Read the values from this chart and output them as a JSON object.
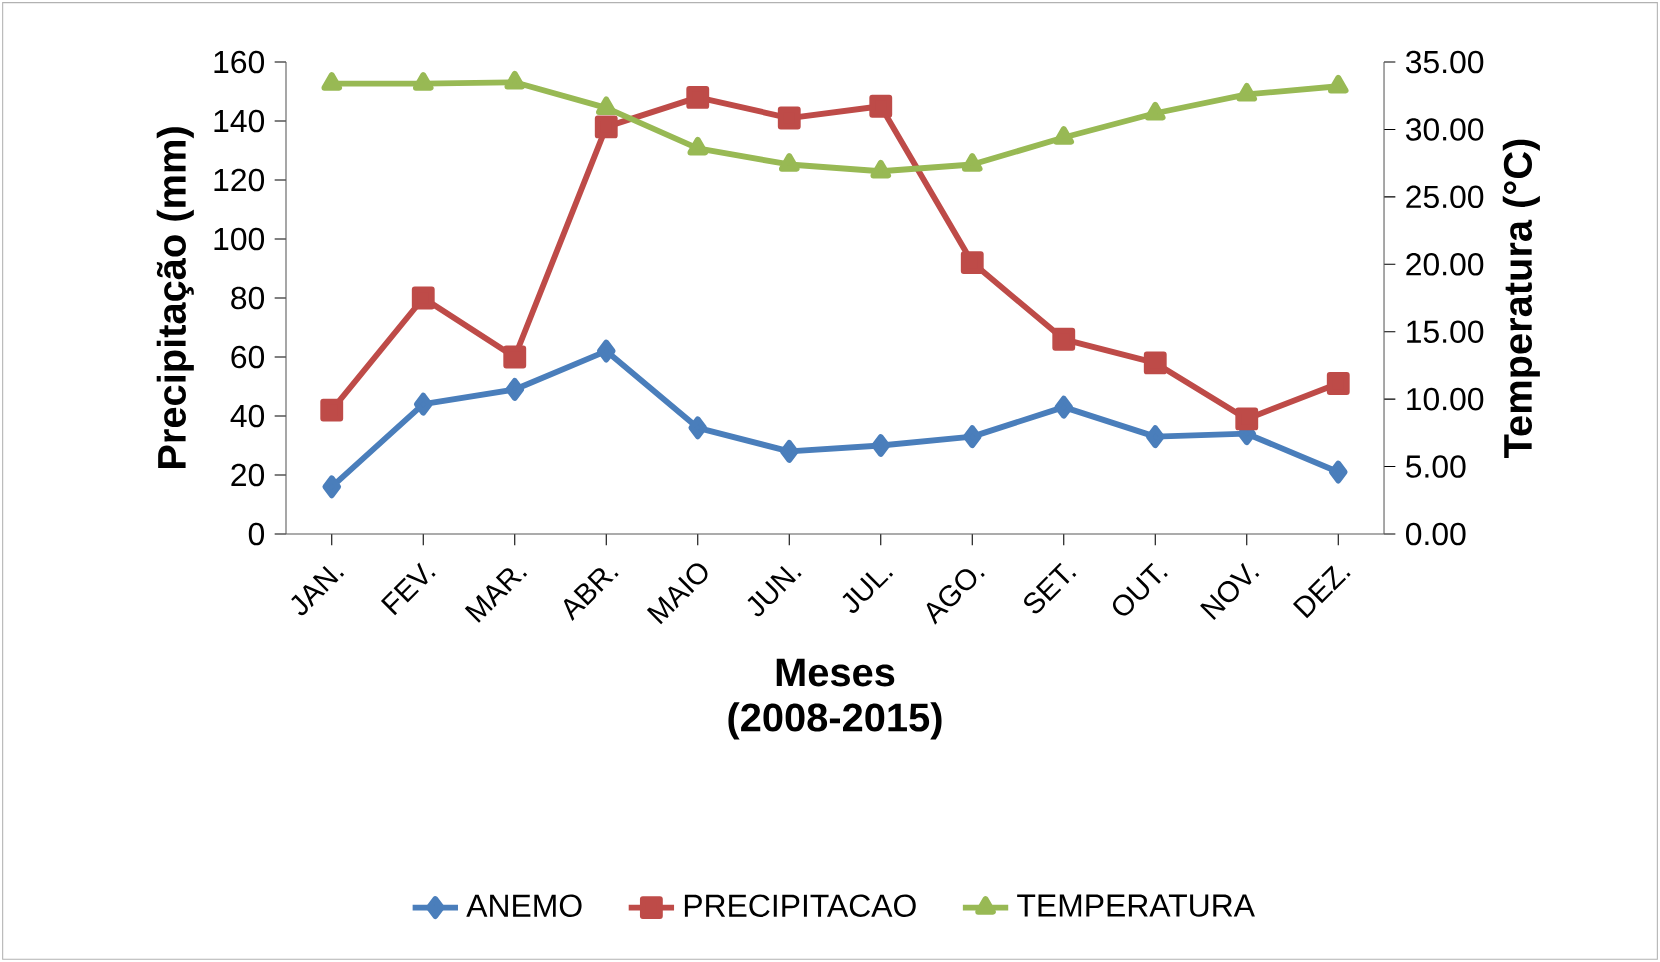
{
  "chart_data": {
    "type": "line",
    "xlabel": "Meses (2008-2015)",
    "ylabel": "Precipitação (mm)",
    "y2label": "Temperatura (°C)",
    "categories": [
      "JAN.",
      "FEV.",
      "MAR.",
      "ABR.",
      "MAIO",
      "JUN.",
      "JUL.",
      "AGO.",
      "SET.",
      "OUT.",
      "NOV.",
      "DEZ."
    ],
    "series": [
      {
        "name": "ANEMO",
        "color": "#4a7ebb",
        "marker": "diamond",
        "values": [
          16,
          44,
          49,
          62,
          36,
          28,
          30,
          33,
          43,
          33,
          34,
          21
        ]
      },
      {
        "name": "PRECIPITACAO",
        "color": "#be4b48",
        "marker": "square",
        "values": [
          42,
          80,
          60,
          138,
          148,
          141,
          145,
          92,
          66,
          58,
          39,
          51
        ]
      },
      {
        "name": "TEMPERATURA",
        "color": "#98b954",
        "marker": "triangle",
        "axis": "y2",
        "values": [
          33.4,
          33.4,
          33.5,
          31.6,
          28.6,
          27.4,
          26.9,
          27.4,
          29.4,
          31.2,
          32.6,
          33.2
        ]
      }
    ],
    "ylim": [
      0,
      160
    ],
    "yticks": [
      0,
      20,
      40,
      60,
      80,
      100,
      120,
      140,
      160
    ],
    "y2lim": [
      0,
      35
    ],
    "y2ticks": [
      {
        "value": 0,
        "label": "0.00"
      },
      {
        "value": 5,
        "label": "5.00"
      },
      {
        "value": 10,
        "label": "10.00"
      },
      {
        "value": 15,
        "label": "15.00"
      },
      {
        "value": 20,
        "label": "20.00"
      },
      {
        "value": 25,
        "label": "25.00"
      },
      {
        "value": 30,
        "label": "30.00"
      },
      {
        "value": 35,
        "label": "35.00"
      }
    ],
    "legend": "bottom"
  }
}
